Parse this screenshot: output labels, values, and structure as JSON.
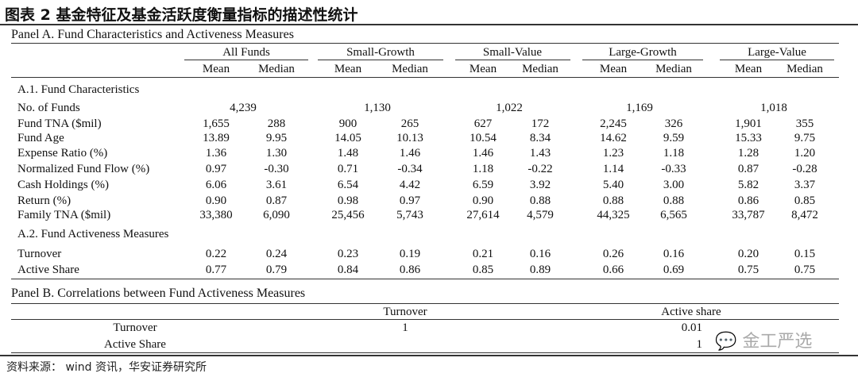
{
  "figure_title": "图表 2 基金特征及基金活跃度衡量指标的描述性统计",
  "panel_a": {
    "title": "Panel A. Fund Characteristics and Activeness Measures",
    "groups": [
      "All Funds",
      "Small-Growth",
      "Small-Value",
      "Large-Growth",
      "Large-Value"
    ],
    "stats": [
      "Mean",
      "Median"
    ],
    "section1": "A.1. Fund Characteristics",
    "no_funds": {
      "label": "No. of Funds",
      "values": [
        "4,239",
        "1,130",
        "1,022",
        "1,169",
        "1,018"
      ]
    },
    "rows1": [
      {
        "label": "Fund TNA ($mil)",
        "values": [
          "1,655",
          "288",
          "900",
          "265",
          "627",
          "172",
          "2,245",
          "326",
          "1,901",
          "355"
        ]
      },
      {
        "label": "Fund Age",
        "values": [
          "13.89",
          "9.95",
          "14.05",
          "10.13",
          "10.54",
          "8.34",
          "14.62",
          "9.59",
          "15.33",
          "9.75"
        ]
      },
      {
        "label": "Expense Ratio (%)",
        "values": [
          "1.36",
          "1.30",
          "1.48",
          "1.46",
          "1.46",
          "1.43",
          "1.23",
          "1.18",
          "1.28",
          "1.20"
        ]
      },
      {
        "label": "Normalized Fund Flow (%)",
        "values": [
          "0.97",
          "-0.30",
          "0.71",
          "-0.34",
          "1.18",
          "-0.22",
          "1.14",
          "-0.33",
          "0.87",
          "-0.28"
        ]
      },
      {
        "label": "Cash Holdings (%)",
        "values": [
          "6.06",
          "3.61",
          "6.54",
          "4.42",
          "6.59",
          "3.92",
          "5.40",
          "3.00",
          "5.82",
          "3.37"
        ]
      },
      {
        "label": "Return (%)",
        "values": [
          "0.90",
          "0.87",
          "0.98",
          "0.97",
          "0.90",
          "0.88",
          "0.88",
          "0.88",
          "0.86",
          "0.85"
        ]
      },
      {
        "label": "Family TNA ($mil)",
        "values": [
          "33,380",
          "6,090",
          "25,456",
          "5,743",
          "27,614",
          "4,579",
          "44,325",
          "6,565",
          "33,787",
          "8,472"
        ]
      }
    ],
    "section2": "A.2. Fund Activeness Measures",
    "rows2": [
      {
        "label": "Turnover",
        "values": [
          "0.22",
          "0.24",
          "0.23",
          "0.19",
          "0.21",
          "0.16",
          "0.26",
          "0.16",
          "0.20",
          "0.15"
        ]
      },
      {
        "label": "Active Share",
        "values": [
          "0.77",
          "0.79",
          "0.84",
          "0.86",
          "0.85",
          "0.89",
          "0.66",
          "0.69",
          "0.75",
          "0.75"
        ]
      }
    ]
  },
  "panel_b": {
    "title": "Panel B. Correlations between Fund Activeness Measures",
    "columns": [
      "Turnover",
      "Active share"
    ],
    "rows": [
      {
        "label": "Turnover",
        "values": [
          "1",
          "0.01"
        ]
      },
      {
        "label": "Active Share",
        "values": [
          "",
          "1"
        ]
      }
    ]
  },
  "watermark": "金工严选",
  "source": "资料来源： wind 资讯，华安证券研究所"
}
